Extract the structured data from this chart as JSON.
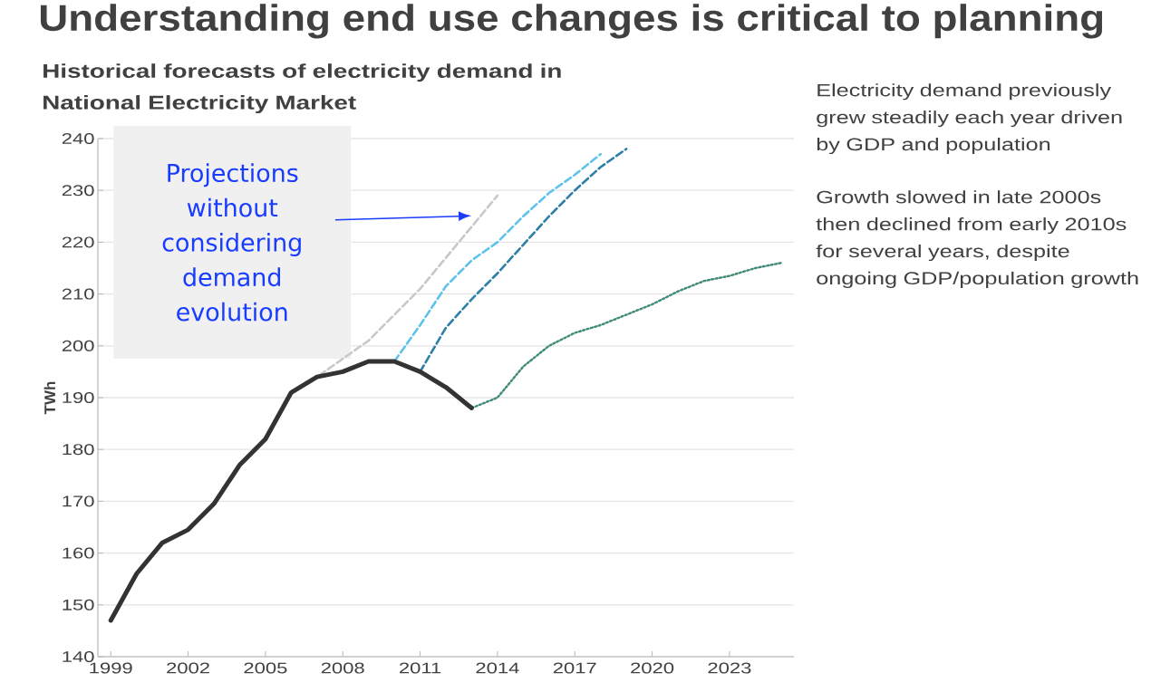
{
  "chart_data": {
    "type": "line",
    "title": "Understanding end use changes is critical to planning",
    "subtitle": "Historical forecasts of electricity demand in National Electricity Market",
    "ylabel": "TWh",
    "annotations": [
      "Projections without considering demand evolution",
      "Electricity demand previously grew steadily each year driven by GDP and population",
      "Growth slowed in late 2000s then declined from early 2010s for several years, despite ongoing GDP/population growth"
    ],
    "series": [
      {
        "color": "#c8c8c8",
        "line_style": "dashed",
        "x": [
          2006,
          2007,
          2008,
          2009,
          2010,
          2011,
          2012,
          2013,
          2014
        ],
        "values": [
          191,
          194,
          197.5,
          201,
          206,
          211,
          217,
          223,
          229
        ]
      },
      {
        "color": "#5ec2ec",
        "line_style": "dashed",
        "x": [
          2010,
          2011,
          2012,
          2013,
          2014,
          2015,
          2016,
          2017,
          2018
        ],
        "values": [
          197,
          204,
          211.5,
          216.5,
          220,
          225,
          229.5,
          233,
          237
        ]
      },
      {
        "color": "#2e7fa6",
        "line_style": "dashed",
        "x": [
          2011,
          2012,
          2013,
          2014,
          2015,
          2016,
          2017,
          2018,
          2019
        ],
        "values": [
          195,
          203.5,
          209,
          214,
          219.5,
          225,
          230,
          234.5,
          238
        ]
      },
      {
        "color": "#3f8a78",
        "line_style": "dotted",
        "x": [
          2013,
          2014,
          2015,
          2016,
          2017,
          2018,
          2019,
          2020,
          2021,
          2022,
          2023,
          2024,
          2025
        ],
        "values": [
          188,
          190,
          196,
          200,
          202.5,
          204,
          206,
          208,
          210.5,
          212.5,
          213.5,
          215,
          216
        ]
      },
      {
        "color": "#333333",
        "line_style": "solid",
        "x": [
          1999,
          2000,
          2001,
          2002,
          2003,
          2004,
          2005,
          2006,
          2007,
          2008,
          2009,
          2010,
          2011,
          2012,
          2013
        ],
        "values": [
          147,
          156,
          162,
          164.5,
          169.5,
          177,
          182,
          191,
          194,
          195,
          197,
          197,
          195,
          192,
          188
        ]
      }
    ],
    "xlim": [
      1998.5,
      2025.5
    ],
    "xticks": [
      1999,
      2002,
      2005,
      2008,
      2011,
      2014,
      2017,
      2020,
      2023
    ],
    "ylim": [
      140,
      240
    ],
    "yticks": [
      140,
      150,
      160,
      170,
      180,
      190,
      200,
      210,
      220,
      230,
      240
    ],
    "grid": "y"
  }
}
